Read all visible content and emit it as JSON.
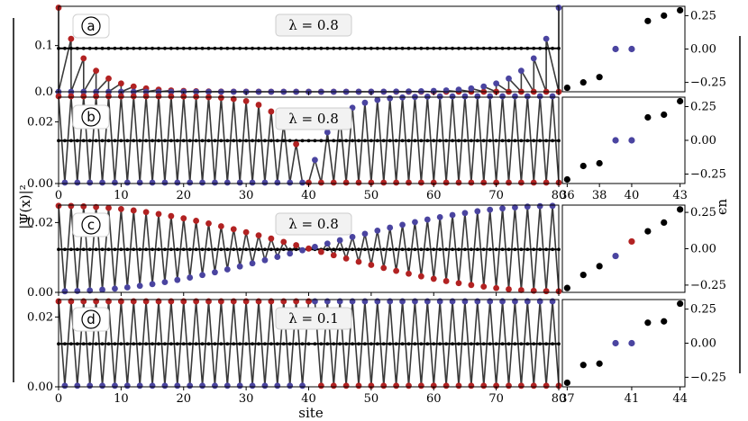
{
  "colors": {
    "red": "#b22222",
    "blue": "#4a44a0",
    "black": "#000000",
    "zigzag": "#3a3a3a"
  },
  "y_axis_label": "|Ψ(x)|²",
  "x_axis_label": "site",
  "right_axis_label": "ϵn",
  "chart_data": [
    {
      "panel": "a",
      "type": "line",
      "lambda_label": "λ = 0.8",
      "xlim": [
        0,
        80
      ],
      "ylim": [
        0,
        0.185
      ],
      "yticks": [
        "0.0",
        "0.1"
      ],
      "x_ticklabels_shown": false,
      "average_level": 0.094,
      "series": [
        {
          "color": "red",
          "start_site": 0,
          "edge": "left",
          "peak": 0.182,
          "decay": 0.63
        },
        {
          "color": "blue",
          "start_site": 80,
          "edge": "right",
          "peak": 0.182,
          "decay": 0.63
        }
      ]
    },
    {
      "panel": "b",
      "type": "line",
      "lambda_label": "λ = 0.8",
      "xlim": [
        0,
        80
      ],
      "ylim": [
        0,
        0.028
      ],
      "yticks": [
        "0.00",
        "0.02"
      ],
      "xticks": [
        "0",
        "10",
        "20",
        "30",
        "40",
        "50",
        "60",
        "70",
        "80"
      ],
      "average_level": 0.0139,
      "series": [
        {
          "color": "red",
          "start_site": 0,
          "profile": "domain-wall-left",
          "plateau": 0.0275,
          "defect_site": 40
        },
        {
          "color": "blue",
          "start_site": 1,
          "profile": "domain-wall-right",
          "plateau": 0.0275,
          "defect_site": 40
        }
      ]
    },
    {
      "panel": "c",
      "type": "line",
      "lambda_label": "λ = 0.8",
      "xlim": [
        0,
        80
      ],
      "ylim": [
        0,
        0.025
      ],
      "yticks": [
        "0.00",
        "0.02"
      ],
      "x_ticklabels_shown": false,
      "average_level": 0.0123,
      "series": [
        {
          "color": "red",
          "start_site": 0,
          "profile": "cosine-left",
          "max": 0.0245
        },
        {
          "color": "blue",
          "start_site": 1,
          "profile": "cosine-right",
          "max": 0.0245
        }
      ]
    },
    {
      "panel": "d",
      "type": "line",
      "lambda_label": "λ = 0.1",
      "xlim": [
        0,
        80
      ],
      "ylim": [
        0,
        0.025
      ],
      "yticks": [
        "0.00",
        "0.02"
      ],
      "xticks": [
        "0",
        "10",
        "20",
        "30",
        "40",
        "50",
        "60",
        "70",
        "80"
      ],
      "average_level": 0.0123,
      "series": [
        {
          "color": "red",
          "start_site": 0,
          "profile": "flat-switch",
          "max": 0.0245,
          "switch_site": 40
        },
        {
          "color": "blue",
          "start_site": 1,
          "profile": "flat-switch",
          "max": 0.0245,
          "switch_site": 40
        }
      ]
    },
    {
      "panel": "a-spectrum",
      "type": "scatter",
      "ylim": [
        -0.32,
        0.32
      ],
      "yticks": [
        "0.25",
        "0.00",
        "−0.25"
      ],
      "xlim": [
        35.7,
        43.3
      ],
      "x_ticklabels_shown": false,
      "points": [
        {
          "x": 36,
          "y": -0.29,
          "color": "black"
        },
        {
          "x": 37,
          "y": -0.25,
          "color": "black"
        },
        {
          "x": 38,
          "y": -0.21,
          "color": "black"
        },
        {
          "x": 39,
          "y": 0.0,
          "color": "blue"
        },
        {
          "x": 40,
          "y": 0.0,
          "color": "blue"
        },
        {
          "x": 41,
          "y": 0.21,
          "color": "black"
        },
        {
          "x": 42,
          "y": 0.25,
          "color": "black"
        },
        {
          "x": 43,
          "y": 0.29,
          "color": "black"
        }
      ]
    },
    {
      "panel": "b-spectrum",
      "type": "scatter",
      "ylim": [
        -0.32,
        0.32
      ],
      "yticks": [
        "0.25",
        "0.00",
        "−0.25"
      ],
      "xlim": [
        35.7,
        43.3
      ],
      "xticks": [
        "36",
        "38",
        "40",
        "43"
      ],
      "xtick_values": [
        36,
        38,
        40,
        43
      ],
      "points": [
        {
          "x": 36,
          "y": -0.29,
          "color": "black"
        },
        {
          "x": 37,
          "y": -0.19,
          "color": "black"
        },
        {
          "x": 38,
          "y": -0.17,
          "color": "black"
        },
        {
          "x": 39,
          "y": 0.0,
          "color": "blue"
        },
        {
          "x": 40,
          "y": 0.0,
          "color": "blue"
        },
        {
          "x": 41,
          "y": 0.17,
          "color": "black"
        },
        {
          "x": 42,
          "y": 0.19,
          "color": "black"
        },
        {
          "x": 43,
          "y": 0.29,
          "color": "black"
        }
      ]
    },
    {
      "panel": "c-spectrum",
      "type": "scatter",
      "ylim": [
        -0.3,
        0.3
      ],
      "yticks": [
        "0.25",
        "0.00",
        "−0.25"
      ],
      "xlim": [
        35.7,
        43.3
      ],
      "x_ticklabels_shown": false,
      "points": [
        {
          "x": 36,
          "y": -0.27,
          "color": "black"
        },
        {
          "x": 37,
          "y": -0.18,
          "color": "black"
        },
        {
          "x": 38,
          "y": -0.12,
          "color": "black"
        },
        {
          "x": 39,
          "y": -0.05,
          "color": "blue"
        },
        {
          "x": 40,
          "y": 0.05,
          "color": "red"
        },
        {
          "x": 41,
          "y": 0.12,
          "color": "black"
        },
        {
          "x": 42,
          "y": 0.18,
          "color": "black"
        },
        {
          "x": 43,
          "y": 0.27,
          "color": "black"
        }
      ]
    },
    {
      "panel": "d-spectrum",
      "type": "scatter",
      "ylim": [
        -0.32,
        0.32
      ],
      "yticks": [
        "0.25",
        "0.00",
        "−0.25"
      ],
      "xlim": [
        36.7,
        44.3
      ],
      "xticks": [
        "37",
        "41",
        "44"
      ],
      "xtick_values": [
        37,
        41,
        44
      ],
      "points": [
        {
          "x": 37,
          "y": -0.29,
          "color": "black"
        },
        {
          "x": 38,
          "y": -0.16,
          "color": "black"
        },
        {
          "x": 39,
          "y": -0.15,
          "color": "black"
        },
        {
          "x": 40,
          "y": 0.0,
          "color": "blue"
        },
        {
          "x": 41,
          "y": 0.0,
          "color": "blue"
        },
        {
          "x": 42,
          "y": 0.15,
          "color": "black"
        },
        {
          "x": 43,
          "y": 0.16,
          "color": "black"
        },
        {
          "x": 44,
          "y": 0.29,
          "color": "black"
        }
      ]
    }
  ]
}
